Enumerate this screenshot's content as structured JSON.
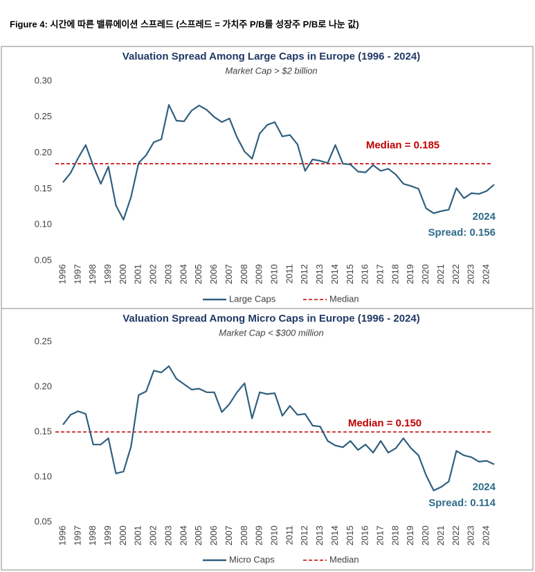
{
  "caption": "Figure 4: 시간에 따른 밸류에이션 스프레드 (스프레드 = 가치주 P/B를 성장주 P/B로 나눈 값)",
  "chart_data": [
    {
      "type": "line",
      "title": "Valuation Spread Among Large Caps in Europe (1996 - 2024)",
      "subtitle": "Market Cap > $2 billion",
      "categories": [
        "1996",
        null,
        "1997",
        null,
        "1998",
        null,
        "1999",
        null,
        "2000",
        null,
        "2001",
        null,
        "2002",
        null,
        "2003",
        null,
        "2004",
        null,
        "2005",
        null,
        "2006",
        null,
        "2007",
        null,
        "2008",
        null,
        "2009",
        null,
        "2010",
        null,
        "2011",
        null,
        "2012",
        null,
        "2013",
        null,
        "2014",
        null,
        "2015",
        null,
        "2016",
        null,
        "2017",
        null,
        "2018",
        null,
        "2019",
        null,
        "2020",
        null,
        "2021",
        null,
        "2022",
        null,
        "2023",
        null,
        "2024",
        null
      ],
      "series": [
        {
          "name": "Large Caps",
          "color": "#2f5f7f",
          "values": [
            0.159,
            0.172,
            0.193,
            0.211,
            0.182,
            0.157,
            0.181,
            0.127,
            0.107,
            0.139,
            0.186,
            0.197,
            0.215,
            0.219,
            0.267,
            0.245,
            0.244,
            0.259,
            0.266,
            0.26,
            0.25,
            0.243,
            0.248,
            0.222,
            0.202,
            0.192,
            0.227,
            0.239,
            0.243,
            0.223,
            0.225,
            0.212,
            0.175,
            0.191,
            0.189,
            0.186,
            0.211,
            0.185,
            0.184,
            0.174,
            0.173,
            0.183,
            0.175,
            0.178,
            0.17,
            0.157,
            0.154,
            0.15,
            0.123,
            0.116,
            0.119,
            0.121,
            0.151,
            0.137,
            0.144,
            0.143,
            0.147,
            0.156
          ]
        }
      ],
      "reference_line": {
        "name": "Median",
        "value": 0.185,
        "label": "Median = 0.185",
        "color": "#c00000"
      },
      "annotations": [
        "2024",
        "Spread: 0.156"
      ],
      "ylim": [
        0.05,
        0.3
      ],
      "yticks": [
        0.05,
        {
          "value": 0.1,
          "label": "0.10"
        },
        0.15,
        {
          "value": 0.2,
          "label": "0.20"
        },
        0.25,
        {
          "value": 0.3,
          "label": "0.30"
        }
      ],
      "grid": false
    },
    {
      "type": "line",
      "title": "Valuation Spread Among Micro Caps in Europe (1996 - 2024)",
      "subtitle": "Market Cap < $300 million",
      "categories": [
        "1996",
        null,
        "1997",
        null,
        "1998",
        null,
        "1999",
        null,
        "2000",
        null,
        "2001",
        null,
        "2002",
        null,
        "2003",
        null,
        "2004",
        null,
        "2005",
        null,
        "2006",
        null,
        "2007",
        null,
        "2008",
        null,
        "2009",
        null,
        "2010",
        null,
        "2011",
        null,
        "2012",
        null,
        "2013",
        null,
        "2014",
        null,
        "2015",
        null,
        "2016",
        null,
        "2017",
        null,
        "2018",
        null,
        "2019",
        null,
        "2020",
        null,
        "2021",
        null,
        "2022",
        null,
        "2023",
        null,
        "2024",
        null
      ],
      "series": [
        {
          "name": "Micro Caps",
          "color": "#2f5f7f",
          "values": [
            0.158,
            0.169,
            0.173,
            0.17,
            0.136,
            0.136,
            0.143,
            0.104,
            0.106,
            0.134,
            0.191,
            0.195,
            0.218,
            0.216,
            0.223,
            0.209,
            0.203,
            0.197,
            0.198,
            0.194,
            0.194,
            0.172,
            0.181,
            0.194,
            0.204,
            0.165,
            0.194,
            0.192,
            0.193,
            0.168,
            0.179,
            0.169,
            0.17,
            0.157,
            0.156,
            0.14,
            0.135,
            0.133,
            0.14,
            0.13,
            0.136,
            0.127,
            0.14,
            0.127,
            0.132,
            0.143,
            0.132,
            0.124,
            0.102,
            0.085,
            0.089,
            0.095,
            0.129,
            0.124,
            0.122,
            0.117,
            0.118,
            0.114
          ]
        }
      ],
      "reference_line": {
        "name": "Median",
        "value": 0.15,
        "label": "Median = 0.150",
        "color": "#c00000"
      },
      "annotations": [
        "2024",
        "Spread: 0.114"
      ],
      "ylim": [
        0.05,
        0.25
      ],
      "yticks": [
        0.05,
        {
          "value": 0.1,
          "label": "0.10"
        },
        0.15,
        {
          "value": 0.2,
          "label": "0.20"
        },
        0.25
      ],
      "grid": false
    }
  ]
}
